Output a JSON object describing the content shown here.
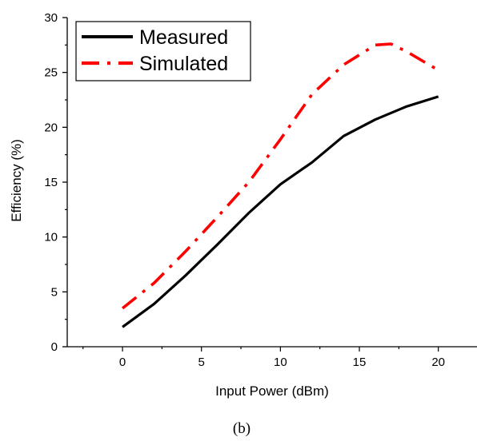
{
  "chart_data": {
    "type": "line",
    "xlabel": "Input Power (dBm)",
    "ylabel": "Efficiency (%)",
    "xlim": [
      -3.5,
      22.5
    ],
    "ylim": [
      0,
      30
    ],
    "xticks": [
      0,
      5,
      10,
      15,
      20
    ],
    "yticks": [
      0,
      5,
      10,
      15,
      20,
      25,
      30
    ],
    "grid": false,
    "legend_position": "top-left",
    "series": [
      {
        "name": "Measured",
        "color": "#000000",
        "style": "solid",
        "x": [
          0,
          2,
          4,
          6,
          8,
          10,
          12,
          14,
          16,
          18,
          20
        ],
        "y": [
          1.8,
          3.9,
          6.5,
          9.3,
          12.2,
          14.8,
          16.8,
          19.2,
          20.7,
          21.9,
          22.8
        ]
      },
      {
        "name": "Simulated",
        "color": "#ff0000",
        "style": "dash-dot",
        "x": [
          0,
          2,
          4,
          6,
          8,
          10,
          12,
          14,
          16,
          17,
          18,
          20
        ],
        "y": [
          3.5,
          5.8,
          8.7,
          11.8,
          15.0,
          18.9,
          23.0,
          25.7,
          27.5,
          27.6,
          26.9,
          25.2
        ]
      }
    ]
  },
  "caption": "(b)"
}
